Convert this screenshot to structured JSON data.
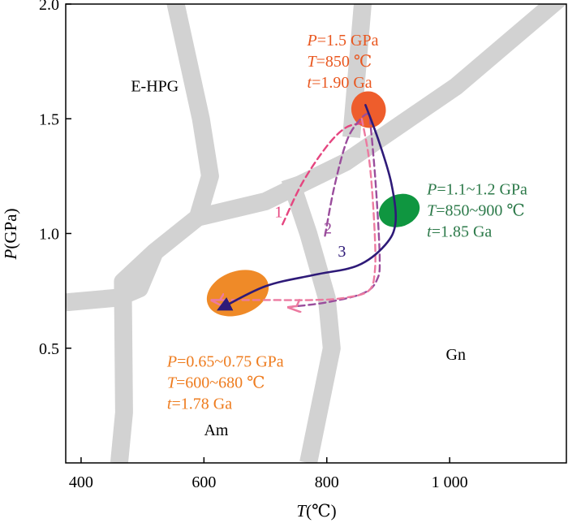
{
  "chart_data": {
    "type": "scatter",
    "title": "",
    "xlabel": "T(℃)",
    "xlabel_parts": {
      "var": "T",
      "unit": "(℃)"
    },
    "ylabel": "P(GPa)",
    "ylabel_parts": {
      "var": "P",
      "unit": "(GPa)"
    },
    "xlim": [
      375,
      1190
    ],
    "ylim": [
      0,
      2.0
    ],
    "xticks": [
      {
        "value": 400,
        "label": "400"
      },
      {
        "value": 600,
        "label": "600"
      },
      {
        "value": 800,
        "label": "800"
      },
      {
        "value": 1000,
        "label": "1 000"
      }
    ],
    "yticks": [
      {
        "value": 0.5,
        "label": "0.5"
      },
      {
        "value": 1.0,
        "label": "1.0"
      },
      {
        "value": 1.5,
        "label": "1.5"
      },
      {
        "value": 2.0,
        "label": "2.0"
      }
    ],
    "grid": false,
    "field_labels": [
      {
        "text": "E-HPG",
        "x": 520,
        "y": 1.62
      },
      {
        "text": "Gn",
        "x": 1010,
        "y": 0.45
      },
      {
        "text": "Am",
        "x": 620,
        "y": 0.12
      }
    ],
    "boundaries": {
      "color": "#d2d2d2",
      "lines": [
        [
          [
            550,
            2.05
          ],
          [
            595,
            1.5
          ],
          [
            610,
            1.25
          ],
          [
            590,
            1.07
          ],
          [
            520,
            0.92
          ],
          [
            495,
            0.76
          ],
          [
            460,
            0.72
          ],
          [
            375,
            0.7
          ]
        ],
        [
          [
            590,
            1.07
          ],
          [
            700,
            1.14
          ],
          [
            830,
            1.31
          ],
          [
            1010,
            1.64
          ],
          [
            1190,
            2.05
          ]
        ],
        [
          [
            520,
            0.92
          ],
          [
            468,
            0.79
          ],
          [
            470,
            0.22
          ],
          [
            462,
            0.0
          ]
        ],
        [
          [
            740,
            1.24
          ],
          [
            770,
            1.0
          ],
          [
            800,
            0.72
          ],
          [
            808,
            0.5
          ],
          [
            770,
            0.0
          ]
        ],
        [
          [
            860,
            2.05
          ],
          [
            840,
            1.42
          ]
        ]
      ]
    },
    "regions": [
      {
        "name": "peak",
        "x": 868,
        "y": 1.54,
        "rx": 28,
        "ry": 0.08,
        "angle": -15,
        "color": "#ee5d2c"
      },
      {
        "name": "retro1",
        "x": 918,
        "y": 1.1,
        "rx": 34,
        "ry": 0.07,
        "angle": -20,
        "color": "#0f9640"
      },
      {
        "name": "retro2",
        "x": 655,
        "y": 0.74,
        "rx": 52,
        "ry": 0.095,
        "angle": -20,
        "color": "#ef8a28"
      }
    ],
    "annotations": [
      {
        "lines": [
          {
            "var": "P",
            "rest": "=1.5 GPa"
          },
          {
            "var": "T",
            "rest": "=850 ℃"
          },
          {
            "var": "t",
            "rest": "=1.90 Ga"
          }
        ],
        "x": 768,
        "y": 1.82,
        "color": "#e9571f"
      },
      {
        "lines": [
          {
            "var": "P",
            "rest": "=1.1~1.2  GPa"
          },
          {
            "var": "T",
            "rest": "=850~900 ℃"
          },
          {
            "var": "t",
            "rest": "=1.85 Ga"
          }
        ],
        "x": 963,
        "y": 1.17,
        "color": "#2d7a4a"
      },
      {
        "lines": [
          {
            "var": "P",
            "rest": "=0.65~0.75 GPa"
          },
          {
            "var": "T",
            "rest": "=600~680 ℃"
          },
          {
            "var": "t",
            "rest": "=1.78 Ga"
          }
        ],
        "x": 540,
        "y": 0.42,
        "color": "#ee7c1f"
      }
    ],
    "series": [
      {
        "name": "1",
        "label_x": 715,
        "label_y": 1.07,
        "color": "#e5457f",
        "dash": true,
        "points": [
          [
            728,
            1.04
          ],
          [
            760,
            1.22
          ],
          [
            800,
            1.38
          ],
          [
            830,
            1.46
          ],
          [
            855,
            1.48
          ]
        ]
      },
      {
        "name": "2",
        "label_x": 795,
        "label_y": 1.0,
        "color": "#9a4d9c",
        "dash": true,
        "points": [
          [
            797,
            0.99
          ],
          [
            812,
            1.2
          ],
          [
            832,
            1.4
          ],
          [
            852,
            1.49
          ],
          [
            868,
            1.52
          ],
          [
            872,
            1.45
          ],
          [
            880,
            1.2
          ],
          [
            886,
            0.9
          ],
          [
            882,
            0.8
          ],
          [
            860,
            0.74
          ],
          [
            800,
            0.7
          ],
          [
            740,
            0.68
          ]
        ]
      },
      {
        "name": "dashed-lower",
        "color": "#ec7aa0",
        "dash": true,
        "points": [
          [
            857,
            1.5
          ],
          [
            870,
            1.3
          ],
          [
            878,
            1.0
          ],
          [
            878,
            0.83
          ],
          [
            868,
            0.75
          ],
          [
            830,
            0.72
          ],
          [
            780,
            0.71
          ],
          [
            700,
            0.71
          ],
          [
            615,
            0.71
          ]
        ]
      },
      {
        "name": "3",
        "label_x": 818,
        "label_y": 0.9,
        "color": "#2e1a78",
        "dash": false,
        "points": [
          [
            863,
            1.56
          ],
          [
            885,
            1.4
          ],
          [
            905,
            1.22
          ],
          [
            912,
            1.05
          ],
          [
            895,
            0.95
          ],
          [
            850,
            0.86
          ],
          [
            780,
            0.82
          ],
          [
            700,
            0.77
          ],
          [
            625,
            0.67
          ]
        ]
      }
    ]
  }
}
